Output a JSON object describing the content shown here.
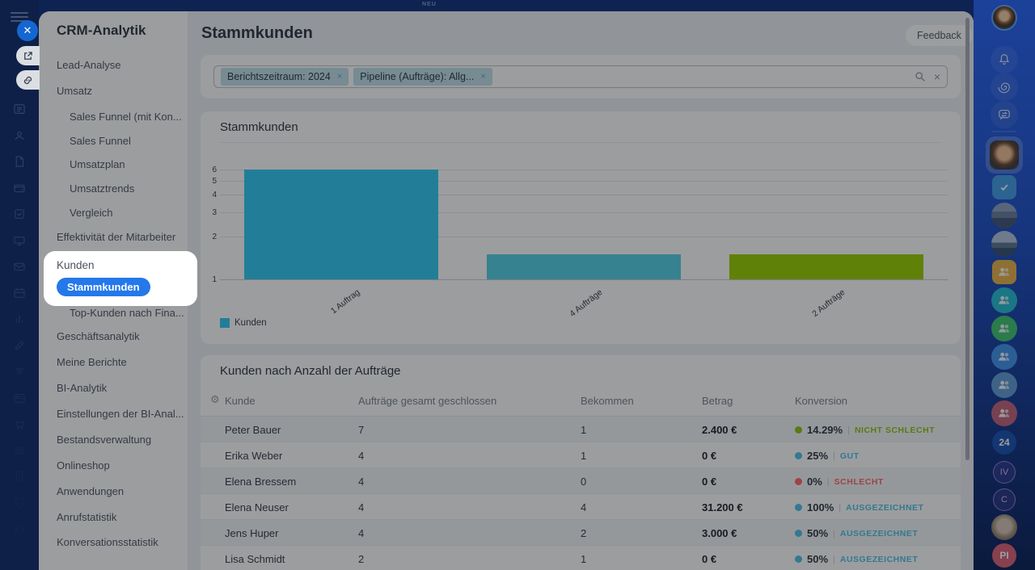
{
  "topbar": {
    "badge": "NEU"
  },
  "sidebar": {
    "title": "CRM-Analytik",
    "items": [
      {
        "label": "Lead-Analyse",
        "indent": false
      },
      {
        "label": "Umsatz",
        "indent": false
      },
      {
        "label": "Sales Funnel (mit Kon...",
        "indent": true
      },
      {
        "label": "Sales Funnel",
        "indent": true
      },
      {
        "label": "Umsatzplan",
        "indent": true
      },
      {
        "label": "Umsatztrends",
        "indent": true
      },
      {
        "label": "Vergleich",
        "indent": true
      },
      {
        "label": "Effektivität der Mitarbeiter",
        "indent": false
      },
      {
        "label": "Top-Kunden nach Fina...",
        "indent": true
      },
      {
        "label": "Geschäftsanalytik",
        "indent": false
      },
      {
        "label": "Meine Berichte",
        "indent": false
      },
      {
        "label": "BI-Analytik",
        "indent": false
      },
      {
        "label": "Einstellungen der BI-Anal...",
        "indent": false
      },
      {
        "label": "Bestandsverwaltung",
        "indent": false
      },
      {
        "label": "Onlineshop",
        "indent": false
      },
      {
        "label": "Anwendungen",
        "indent": false
      },
      {
        "label": "Anrufstatistik",
        "indent": false
      },
      {
        "label": "Konversationsstatistik",
        "indent": false
      }
    ]
  },
  "spotlight": {
    "section_label": "Kunden",
    "active_label": "Stammkunden"
  },
  "header": {
    "title": "Stammkunden",
    "feedback_label": "Feedback"
  },
  "filter": {
    "chips": [
      {
        "label": "Berichtszeitraum: 2024",
        "remove": "×"
      },
      {
        "label": "Pipeline (Aufträge): Allg...",
        "remove": "×"
      }
    ],
    "clear": "×"
  },
  "chart_card": {
    "title": "Stammkunden"
  },
  "chart_data": {
    "type": "bar",
    "title": "Stammkunden",
    "categories": [
      "1 Auftrag",
      "4 Aufträge",
      "2 Aufträge"
    ],
    "series": [
      {
        "name": "Kunden",
        "values": [
          6,
          1.5,
          1.5
        ]
      }
    ],
    "bar_colors": [
      "#35cbf3",
      "#57d2e6",
      "#9bd003"
    ],
    "yticks": [
      1,
      2,
      3,
      4,
      5,
      6
    ],
    "ylim": [
      1,
      6
    ],
    "yscale": "log",
    "xlabel": "",
    "ylabel": "",
    "grid": true,
    "legend": {
      "label": "Kunden",
      "position": "bottom-left"
    }
  },
  "table_card": {
    "title": "Kunden nach Anzahl der Aufträge",
    "columns": [
      "Kunde",
      "Aufträge gesamt geschlossen",
      "Bekommen",
      "Betrag",
      "Konversion"
    ],
    "rows": [
      {
        "name": "Peter Bauer",
        "total": "7",
        "received": "1",
        "amount": "2.400 €",
        "pct": "14.29%",
        "rating": "NICHT SCHLECHT",
        "color": "green"
      },
      {
        "name": "Erika Weber",
        "total": "4",
        "received": "1",
        "amount": "0 €",
        "pct": "25%",
        "rating": "GUT",
        "color": "blue"
      },
      {
        "name": "Elena Bressem",
        "total": "4",
        "received": "0",
        "amount": "0 €",
        "pct": "0%",
        "rating": "SCHLECHT",
        "color": "red"
      },
      {
        "name": "Elena Neuser",
        "total": "4",
        "received": "4",
        "amount": "31.200 €",
        "pct": "100%",
        "rating": "AUSGEZEICHNET",
        "color": "blue"
      },
      {
        "name": "Jens Huper",
        "total": "4",
        "received": "2",
        "amount": "3.000 €",
        "pct": "50%",
        "rating": "AUSGEZEICHNET",
        "color": "blue"
      },
      {
        "name": "Lisa Schmidt",
        "total": "2",
        "received": "1",
        "amount": "0 €",
        "pct": "50%",
        "rating": "AUSGEZEICHNET",
        "color": "blue"
      }
    ],
    "rating_colors": {
      "green": "#97c41c",
      "blue": "#4fc3e8",
      "red": "#ff6b6b"
    }
  },
  "rail": {
    "items": [
      {
        "kind": "avatar",
        "name": "profile-avatar",
        "photo": "woman"
      },
      {
        "kind": "icon",
        "name": "notifications-icon",
        "icon": "bell"
      },
      {
        "kind": "icon",
        "name": "copilot-icon",
        "icon": "swirl"
      },
      {
        "kind": "icon",
        "name": "messenger-icon",
        "icon": "chat"
      },
      {
        "kind": "divider",
        "name": "rail-divider"
      },
      {
        "kind": "avatar_square",
        "name": "recent-chat-avatar",
        "photo": "man",
        "selected": true
      },
      {
        "kind": "square",
        "name": "tasks-chat-icon",
        "icon": "check",
        "bg": "#459fe8"
      },
      {
        "kind": "avatar",
        "name": "chat-avatar",
        "photo": "city"
      },
      {
        "kind": "avatar",
        "name": "chat-avatar",
        "photo": "landscape"
      },
      {
        "kind": "square",
        "name": "group-chat-icon",
        "icon": "people",
        "bg": "#e9b54d"
      },
      {
        "kind": "circle",
        "name": "group-chat-icon",
        "icon": "people",
        "bg": "#29bfd4"
      },
      {
        "kind": "circle",
        "name": "group-chat-icon",
        "icon": "people",
        "bg": "#43c776"
      },
      {
        "kind": "circle",
        "name": "group-chat-icon",
        "icon": "people",
        "bg": "#4596f0"
      },
      {
        "kind": "circle",
        "name": "group-chat-icon",
        "icon": "people",
        "bg": "#639fd6"
      },
      {
        "kind": "circle",
        "name": "group-chat-icon",
        "icon": "people",
        "bg": "#c4667f"
      },
      {
        "kind": "badge",
        "name": "chat-badge",
        "text": "24",
        "bg": "#1c55b4",
        "fg": "#ffffff"
      },
      {
        "kind": "initials",
        "name": "chat-initials",
        "text": "IV",
        "fg": "#cdb9f5"
      },
      {
        "kind": "initials",
        "name": "chat-initials",
        "text": "C",
        "fg": "#cdb9f5"
      },
      {
        "kind": "avatar",
        "name": "chat-avatar",
        "photo": "cat"
      },
      {
        "kind": "badge",
        "name": "chat-initials",
        "text": "PI",
        "bg": "#dd6478",
        "fg": "#ffffff"
      }
    ]
  },
  "left_strip": {
    "icons": [
      "feed-icon",
      "employees-icon",
      "documents-icon",
      "wallet-icon",
      "tasks-icon",
      "workspace-icon",
      "mail-icon",
      "calendar-icon",
      "analytics-icon",
      "sign-icon",
      "crm-funnel-icon",
      "contact-card-icon",
      "shop-cart-icon",
      "marketing-target-icon",
      "docs-icon",
      "security-shield-icon",
      "support-icon"
    ]
  },
  "colors": {
    "accent_blue": "#2478ea",
    "chip_bg": "#c2e2ea",
    "rail_check_bg": "#459fe8"
  }
}
